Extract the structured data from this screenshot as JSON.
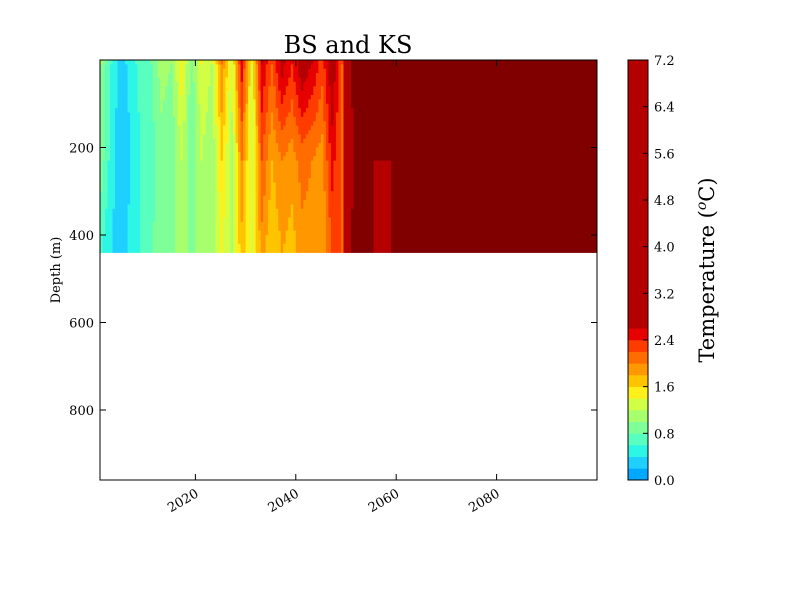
{
  "chart_data": {
    "type": "heatmap",
    "title": "BS and KS",
    "xlabel": "",
    "ylabel": "Depth (m)",
    "x_ticks": [
      "2020",
      "2040",
      "2060",
      "2080"
    ],
    "x_tick_values": [
      2020,
      2040,
      2060,
      2080
    ],
    "xlim": [
      2001,
      2100
    ],
    "y_ticks": [
      "200",
      "400",
      "600",
      "800"
    ],
    "y_tick_values": [
      200,
      400,
      600,
      800
    ],
    "ylim": [
      960,
      0
    ],
    "y_data_range": [
      0,
      440
    ],
    "colorbar": {
      "label": "Temperature (",
      "label_super": "o",
      "label_end": "C)",
      "ticks": [
        "0.0",
        "0.8",
        "1.6",
        "2.4",
        "3.2",
        "4.0",
        "4.8",
        "5.6",
        "6.4",
        "7.2"
      ],
      "tick_values": [
        0.0,
        0.8,
        1.6,
        2.4,
        3.2,
        4.0,
        4.8,
        5.6,
        6.4,
        7.2
      ],
      "vmin": 0.0,
      "vmax": 7.2,
      "levels": [
        0.0,
        0.2,
        0.4,
        0.6,
        0.8,
        1.0,
        1.2,
        1.4,
        1.6,
        1.8,
        2.0,
        2.2,
        2.4,
        2.6,
        7.2
      ],
      "colors": [
        "#00a8ff",
        "#1fd0ff",
        "#2ef6e6",
        "#58ffbe",
        "#7eff98",
        "#a8ff6e",
        "#d0ff46",
        "#fff01c",
        "#ffc400",
        "#ff9800",
        "#ff6c00",
        "#ff3c00",
        "#e60000",
        "#b40000",
        "#800000"
      ]
    },
    "colormap": "jet",
    "columns_temperature_by_year": {
      "years": [
        2001,
        2003,
        2005,
        2007,
        2009,
        2011,
        2013,
        2015,
        2017,
        2019,
        2021,
        2023,
        2025,
        2027,
        2029,
        2031,
        2033,
        2035,
        2037,
        2039,
        2041,
        2043,
        2045,
        2047,
        2049,
        2051,
        2053,
        2055,
        2057,
        2059,
        2061
      ],
      "surface": [
        1.0,
        0.6,
        0.3,
        0.5,
        0.7,
        0.8,
        1.1,
        1.0,
        1.5,
        0.9,
        1.4,
        1.2,
        2.0,
        1.3,
        2.5,
        1.4,
        2.6,
        2.2,
        2.7,
        2.4,
        2.8,
        2.6,
        2.3,
        2.8,
        2.2,
        7.2,
        7.2,
        7.2,
        7.2,
        7.2,
        7.2
      ],
      "mid": [
        0.9,
        0.5,
        0.2,
        0.4,
        0.6,
        0.7,
        0.9,
        0.8,
        1.2,
        0.8,
        1.2,
        1.0,
        1.6,
        1.1,
        2.0,
        1.2,
        2.2,
        1.8,
        2.0,
        1.9,
        2.1,
        2.0,
        1.9,
        2.5,
        2.1,
        7.2,
        7.2,
        7.2,
        7.2,
        7.2,
        7.2
      ],
      "bottom": [
        0.6,
        0.4,
        0.3,
        0.5,
        0.6,
        0.8,
        0.9,
        0.9,
        1.1,
        0.9,
        1.1,
        1.0,
        1.4,
        1.2,
        1.7,
        1.3,
        1.9,
        1.6,
        1.8,
        1.7,
        1.9,
        1.9,
        1.8,
        2.2,
        2.2,
        7.2,
        7.2,
        7.2,
        2.4,
        7.2,
        7.2
      ]
    },
    "grid": false,
    "legend": "colorbar-right"
  }
}
